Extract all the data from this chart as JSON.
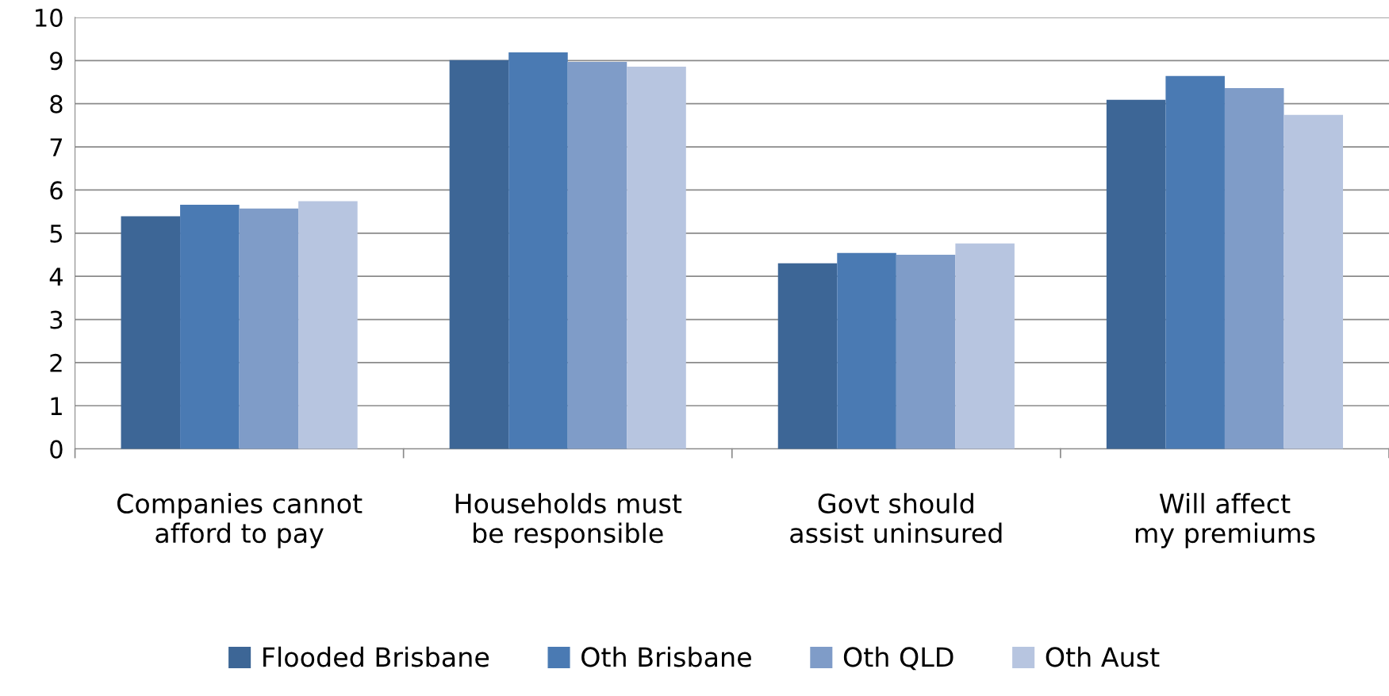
{
  "chart_data": {
    "type": "bar",
    "categories": [
      "Companies cannot afford to pay",
      "Households must be responsible",
      "Govt should assist uninsured",
      "Will affect my premiums"
    ],
    "series": [
      {
        "name": "Flooded Brisbane",
        "color": "#3d6696",
        "values": [
          5.39,
          9.01,
          4.3,
          8.09
        ]
      },
      {
        "name": "Oth Brisbane",
        "color": "#4a7ab3",
        "values": [
          5.66,
          9.19,
          4.54,
          8.64
        ]
      },
      {
        "name": "Oth QLD",
        "color": "#7f9cc8",
        "values": [
          5.57,
          8.97,
          4.5,
          8.36
        ]
      },
      {
        "name": "Oth Aust",
        "color": "#b7c5e0",
        "values": [
          5.74,
          8.86,
          4.76,
          7.74
        ]
      }
    ],
    "ylim": [
      0,
      10
    ],
    "yticks": [
      0,
      1,
      2,
      3,
      4,
      5,
      6,
      7,
      8,
      9,
      10
    ],
    "grid": "y",
    "legend": "bottom"
  }
}
